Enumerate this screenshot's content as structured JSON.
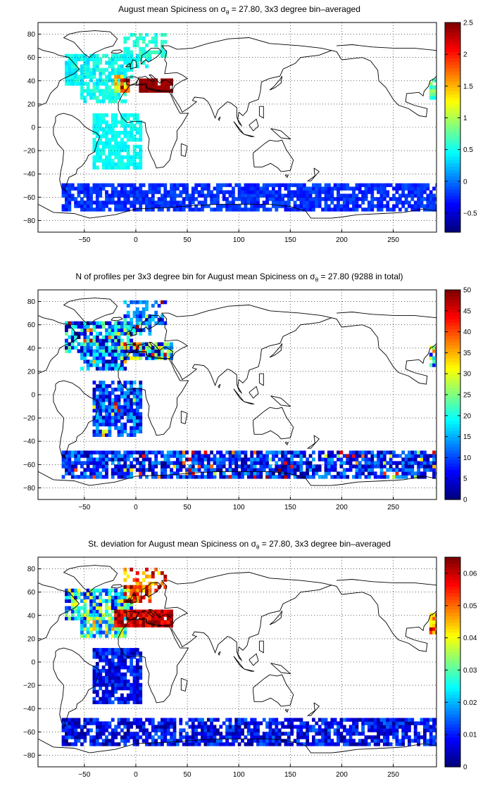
{
  "chart_data": [
    {
      "type": "heatmap",
      "title_pre": "August mean Spiciness on σ",
      "title_sub": "θ",
      "title_post": " = 27.80, 3x3 degree bin–averaged",
      "x_ticks": [
        "−50",
        "0",
        "50",
        "100",
        "150",
        "200",
        "250"
      ],
      "y_ticks": [
        "80",
        "60",
        "40",
        "20",
        "0",
        "−20",
        "−40",
        "−60",
        "−80"
      ],
      "xlim": [
        -95,
        292
      ],
      "ylim": [
        -90,
        90
      ],
      "colorbar": {
        "min": -0.8,
        "max": 2.5,
        "ticks": [
          "2.5",
          "2",
          "1.5",
          "1",
          "0.5",
          "0",
          "−0.5"
        ]
      },
      "grid": true
    },
    {
      "type": "heatmap",
      "title_pre": "N of profiles per 3x3 degree bin for August mean Spiciness on σ",
      "title_sub": "θ",
      "title_post": " = 27.80 (9288 in total)",
      "x_ticks": [
        "−50",
        "0",
        "50",
        "100",
        "150",
        "200",
        "250"
      ],
      "y_ticks": [
        "80",
        "60",
        "40",
        "20",
        "0",
        "−20",
        "−40",
        "−60",
        "−80"
      ],
      "xlim": [
        -95,
        292
      ],
      "ylim": [
        -90,
        90
      ],
      "colorbar": {
        "min": 0,
        "max": 50,
        "ticks": [
          "50",
          "45",
          "40",
          "35",
          "30",
          "25",
          "20",
          "15",
          "10",
          "5",
          "0"
        ]
      },
      "grid": true
    },
    {
      "type": "heatmap",
      "title_pre": "St. deviation for August mean Spiciness on σ",
      "title_sub": "θ",
      "title_post": " = 27.80, 3x3 degree bin–averaged",
      "x_ticks": [
        "−50",
        "0",
        "50",
        "100",
        "150",
        "200",
        "250"
      ],
      "y_ticks": [
        "80",
        "60",
        "40",
        "20",
        "0",
        "−20",
        "−40",
        "−60",
        "−80"
      ],
      "xlim": [
        -95,
        292
      ],
      "ylim": [
        -90,
        90
      ],
      "colorbar": {
        "min": 0,
        "max": 0.065,
        "ticks": [
          "0.06",
          "0.05",
          "0.04",
          "0.03",
          "0.02",
          "0.01",
          "0"
        ]
      },
      "grid": true
    }
  ]
}
